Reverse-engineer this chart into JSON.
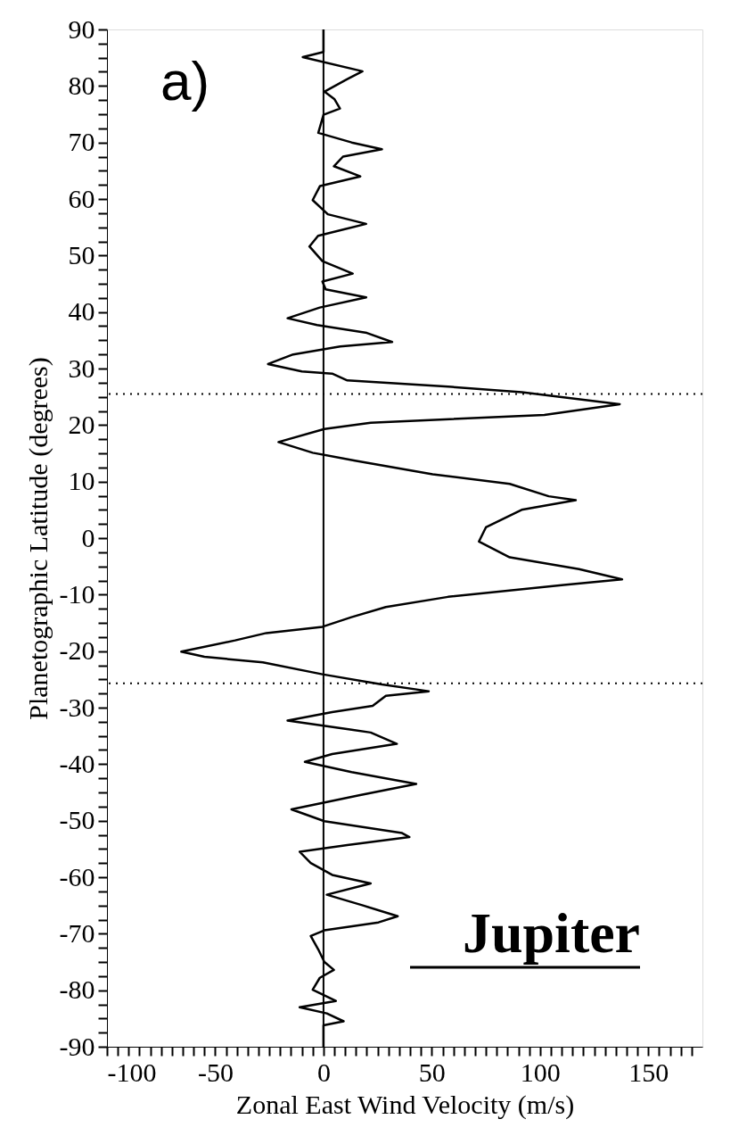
{
  "chart_data": {
    "type": "line",
    "xlabel": "Zonal East Wind Velocity (m/s)",
    "ylabel": "Planetographic Latitude (degrees)",
    "annotations": [
      "a)",
      "Jupiter"
    ],
    "series": [
      {
        "color": "#000000",
        "line_style": "solid",
        "x": [
          0,
          0,
          -9.6,
          18,
          11,
          0.5,
          5,
          7.6,
          0,
          -2.4,
          13,
          27,
          9,
          4.8,
          17,
          -1.6,
          -5,
          2,
          19.7,
          -2.5,
          -6.5,
          -0.5,
          13.5,
          -0.5,
          1,
          19.7,
          -1.7,
          -16.6,
          -3,
          20,
          31.7,
          7.7,
          -14,
          -25.6,
          -10,
          4,
          11,
          57.6,
          91.6,
          136.8,
          102,
          21.8,
          0.4,
          -20.8,
          -5,
          14.6,
          50.4,
          86,
          104,
          116.5,
          91.5,
          75,
          71.8,
          86,
          118,
          137.9,
          111,
          57.5,
          28.8,
          12.9,
          -0.5,
          -26.4,
          -40.8,
          -65.7,
          -55,
          -28,
          -0.5,
          27,
          48.6,
          28.8,
          22.7,
          4,
          -16.6,
          13,
          21.8,
          33.9,
          4,
          -8.6,
          13,
          42.8,
          16.4,
          -14.8,
          0.4,
          36.3,
          39.7,
          11,
          -11,
          -5.9,
          4,
          21.8,
          1.5,
          18.2,
          34.3,
          25.4,
          0.4,
          -5.9,
          -2.4,
          0.4,
          4.8,
          -1.7,
          -5,
          5.7,
          -11,
          1.5,
          9.3,
          0,
          0
        ],
        "values": [
          90,
          86,
          85.1,
          82.6,
          81.2,
          79,
          77.7,
          76,
          74.9,
          71.7,
          70,
          68.8,
          67.5,
          65.8,
          64,
          62.3,
          59.8,
          57.3,
          55.6,
          53.5,
          51.6,
          49,
          46.8,
          45.4,
          44,
          42.6,
          40.8,
          38.9,
          37.7,
          36.3,
          34.7,
          33.9,
          32.5,
          30.8,
          29.5,
          29.1,
          27.9,
          26.8,
          25.8,
          23.7,
          21.8,
          20.4,
          19.3,
          17,
          15.1,
          13.7,
          11.3,
          9.6,
          7.4,
          6.7,
          5,
          1.9,
          -0.6,
          -3.4,
          -5.5,
          -7.3,
          -8.3,
          -10.4,
          -12.2,
          -14,
          -15.7,
          -16.8,
          -18.1,
          -20.1,
          -21,
          -22,
          -24.1,
          -25.9,
          -27.1,
          -27.9,
          -29.7,
          -30.8,
          -32.3,
          -33.9,
          -34.4,
          -36.4,
          -38.2,
          -39.6,
          -41.4,
          -43.5,
          -45.5,
          -48,
          -50.1,
          -52.2,
          -52.9,
          -54.3,
          -55.5,
          -57.5,
          -59.6,
          -61.1,
          -63.1,
          -65,
          -66.9,
          -68,
          -69.4,
          -70.4,
          -72.8,
          -75,
          -76.4,
          -77.8,
          -79.9,
          -81.9,
          -83,
          -84.1,
          -85.5,
          -86.2,
          -90
        ]
      }
    ],
    "ref_lines": [
      {
        "axis": "x",
        "value": 0,
        "line_style": "solid",
        "color": "#000000"
      },
      {
        "axis": "y",
        "value": 25.5,
        "line_style": "dotted",
        "color": "#000000"
      },
      {
        "axis": "y",
        "value": -25.7,
        "line_style": "dotted",
        "color": "#000000"
      }
    ],
    "xlim": [
      -100,
      175
    ],
    "ylim": [
      -90,
      90
    ],
    "xticks": [
      -100,
      {
        "value": -95,
        "label": null
      },
      {
        "value": -90,
        "label": null
      },
      {
        "value": -85,
        "label": null
      },
      {
        "value": -80,
        "label": null
      },
      {
        "value": -75,
        "label": null
      },
      {
        "value": -70,
        "label": null
      },
      {
        "value": -65,
        "label": null
      },
      {
        "value": -60,
        "label": null
      },
      {
        "value": -55,
        "label": null
      },
      -50,
      {
        "value": -45,
        "label": null
      },
      {
        "value": -40,
        "label": null
      },
      {
        "value": -35,
        "label": null
      },
      {
        "value": -30,
        "label": null
      },
      {
        "value": -25,
        "label": null
      },
      {
        "value": -20,
        "label": null
      },
      {
        "value": -15,
        "label": null
      },
      {
        "value": -10,
        "label": null
      },
      {
        "value": -5,
        "label": null
      },
      0,
      {
        "value": 5,
        "label": null
      },
      {
        "value": 10,
        "label": null
      },
      {
        "value": 15,
        "label": null
      },
      {
        "value": 20,
        "label": null
      },
      {
        "value": 25,
        "label": null
      },
      {
        "value": 30,
        "label": null
      },
      {
        "value": 35,
        "label": null
      },
      {
        "value": 40,
        "label": null
      },
      {
        "value": 45,
        "label": null
      },
      50,
      {
        "value": 55,
        "label": null
      },
      {
        "value": 60,
        "label": null
      },
      {
        "value": 65,
        "label": null
      },
      {
        "value": 70,
        "label": null
      },
      {
        "value": 75,
        "label": null
      },
      {
        "value": 80,
        "label": null
      },
      {
        "value": 85,
        "label": null
      },
      {
        "value": 90,
        "label": null
      },
      {
        "value": 95,
        "label": null
      },
      100,
      {
        "value": 105,
        "label": null
      },
      {
        "value": 110,
        "label": null
      },
      {
        "value": 115,
        "label": null
      },
      {
        "value": 120,
        "label": null
      },
      {
        "value": 125,
        "label": null
      },
      {
        "value": 130,
        "label": null
      },
      {
        "value": 135,
        "label": null
      },
      {
        "value": 140,
        "label": null
      },
      {
        "value": 145,
        "label": null
      },
      150,
      {
        "value": 155,
        "label": null
      },
      {
        "value": 160,
        "label": null
      },
      {
        "value": 165,
        "label": null
      },
      {
        "value": 170,
        "label": null
      }
    ],
    "yticks": [
      -90,
      {
        "value": -87.5,
        "label": null
      },
      {
        "value": -85,
        "label": null
      },
      {
        "value": -82.5,
        "label": null
      },
      -80,
      {
        "value": -77.5,
        "label": null
      },
      {
        "value": -75,
        "label": null
      },
      {
        "value": -72.5,
        "label": null
      },
      -70,
      {
        "value": -67.5,
        "label": null
      },
      {
        "value": -65,
        "label": null
      },
      {
        "value": -62.5,
        "label": null
      },
      -60,
      {
        "value": -57.5,
        "label": null
      },
      {
        "value": -55,
        "label": null
      },
      {
        "value": -52.5,
        "label": null
      },
      -50,
      {
        "value": -47.5,
        "label": null
      },
      {
        "value": -45,
        "label": null
      },
      {
        "value": -42.5,
        "label": null
      },
      -40,
      {
        "value": -37.5,
        "label": null
      },
      {
        "value": -35,
        "label": null
      },
      {
        "value": -32.5,
        "label": null
      },
      -30,
      {
        "value": -27.5,
        "label": null
      },
      {
        "value": -25,
        "label": null
      },
      {
        "value": -22.5,
        "label": null
      },
      -20,
      {
        "value": -17.5,
        "label": null
      },
      {
        "value": -15,
        "label": null
      },
      {
        "value": -12.5,
        "label": null
      },
      -10,
      {
        "value": -7.5,
        "label": null
      },
      {
        "value": -5,
        "label": null
      },
      {
        "value": -2.5,
        "label": null
      },
      0,
      {
        "value": 2.5,
        "label": null
      },
      {
        "value": 5,
        "label": null
      },
      {
        "value": 7.5,
        "label": null
      },
      10,
      {
        "value": 12.5,
        "label": null
      },
      {
        "value": 15,
        "label": null
      },
      {
        "value": 17.5,
        "label": null
      },
      20,
      {
        "value": 22.5,
        "label": null
      },
      {
        "value": 25,
        "label": null
      },
      {
        "value": 27.5,
        "label": null
      },
      30,
      {
        "value": 32.5,
        "label": null
      },
      {
        "value": 35,
        "label": null
      },
      {
        "value": 37.5,
        "label": null
      },
      40,
      {
        "value": 42.5,
        "label": null
      },
      {
        "value": 45,
        "label": null
      },
      {
        "value": 47.5,
        "label": null
      },
      50,
      {
        "value": 52.5,
        "label": null
      },
      {
        "value": 55,
        "label": null
      },
      {
        "value": 57.5,
        "label": null
      },
      60,
      {
        "value": 62.5,
        "label": null
      },
      {
        "value": 65,
        "label": null
      },
      {
        "value": 67.5,
        "label": null
      },
      70,
      {
        "value": 72.5,
        "label": null
      },
      {
        "value": 75,
        "label": null
      },
      {
        "value": 77.5,
        "label": null
      },
      80,
      {
        "value": 82.5,
        "label": null
      },
      {
        "value": 85,
        "label": null
      },
      {
        "value": 87.5,
        "label": null
      },
      90
    ],
    "grid": false,
    "marker": "none"
  }
}
